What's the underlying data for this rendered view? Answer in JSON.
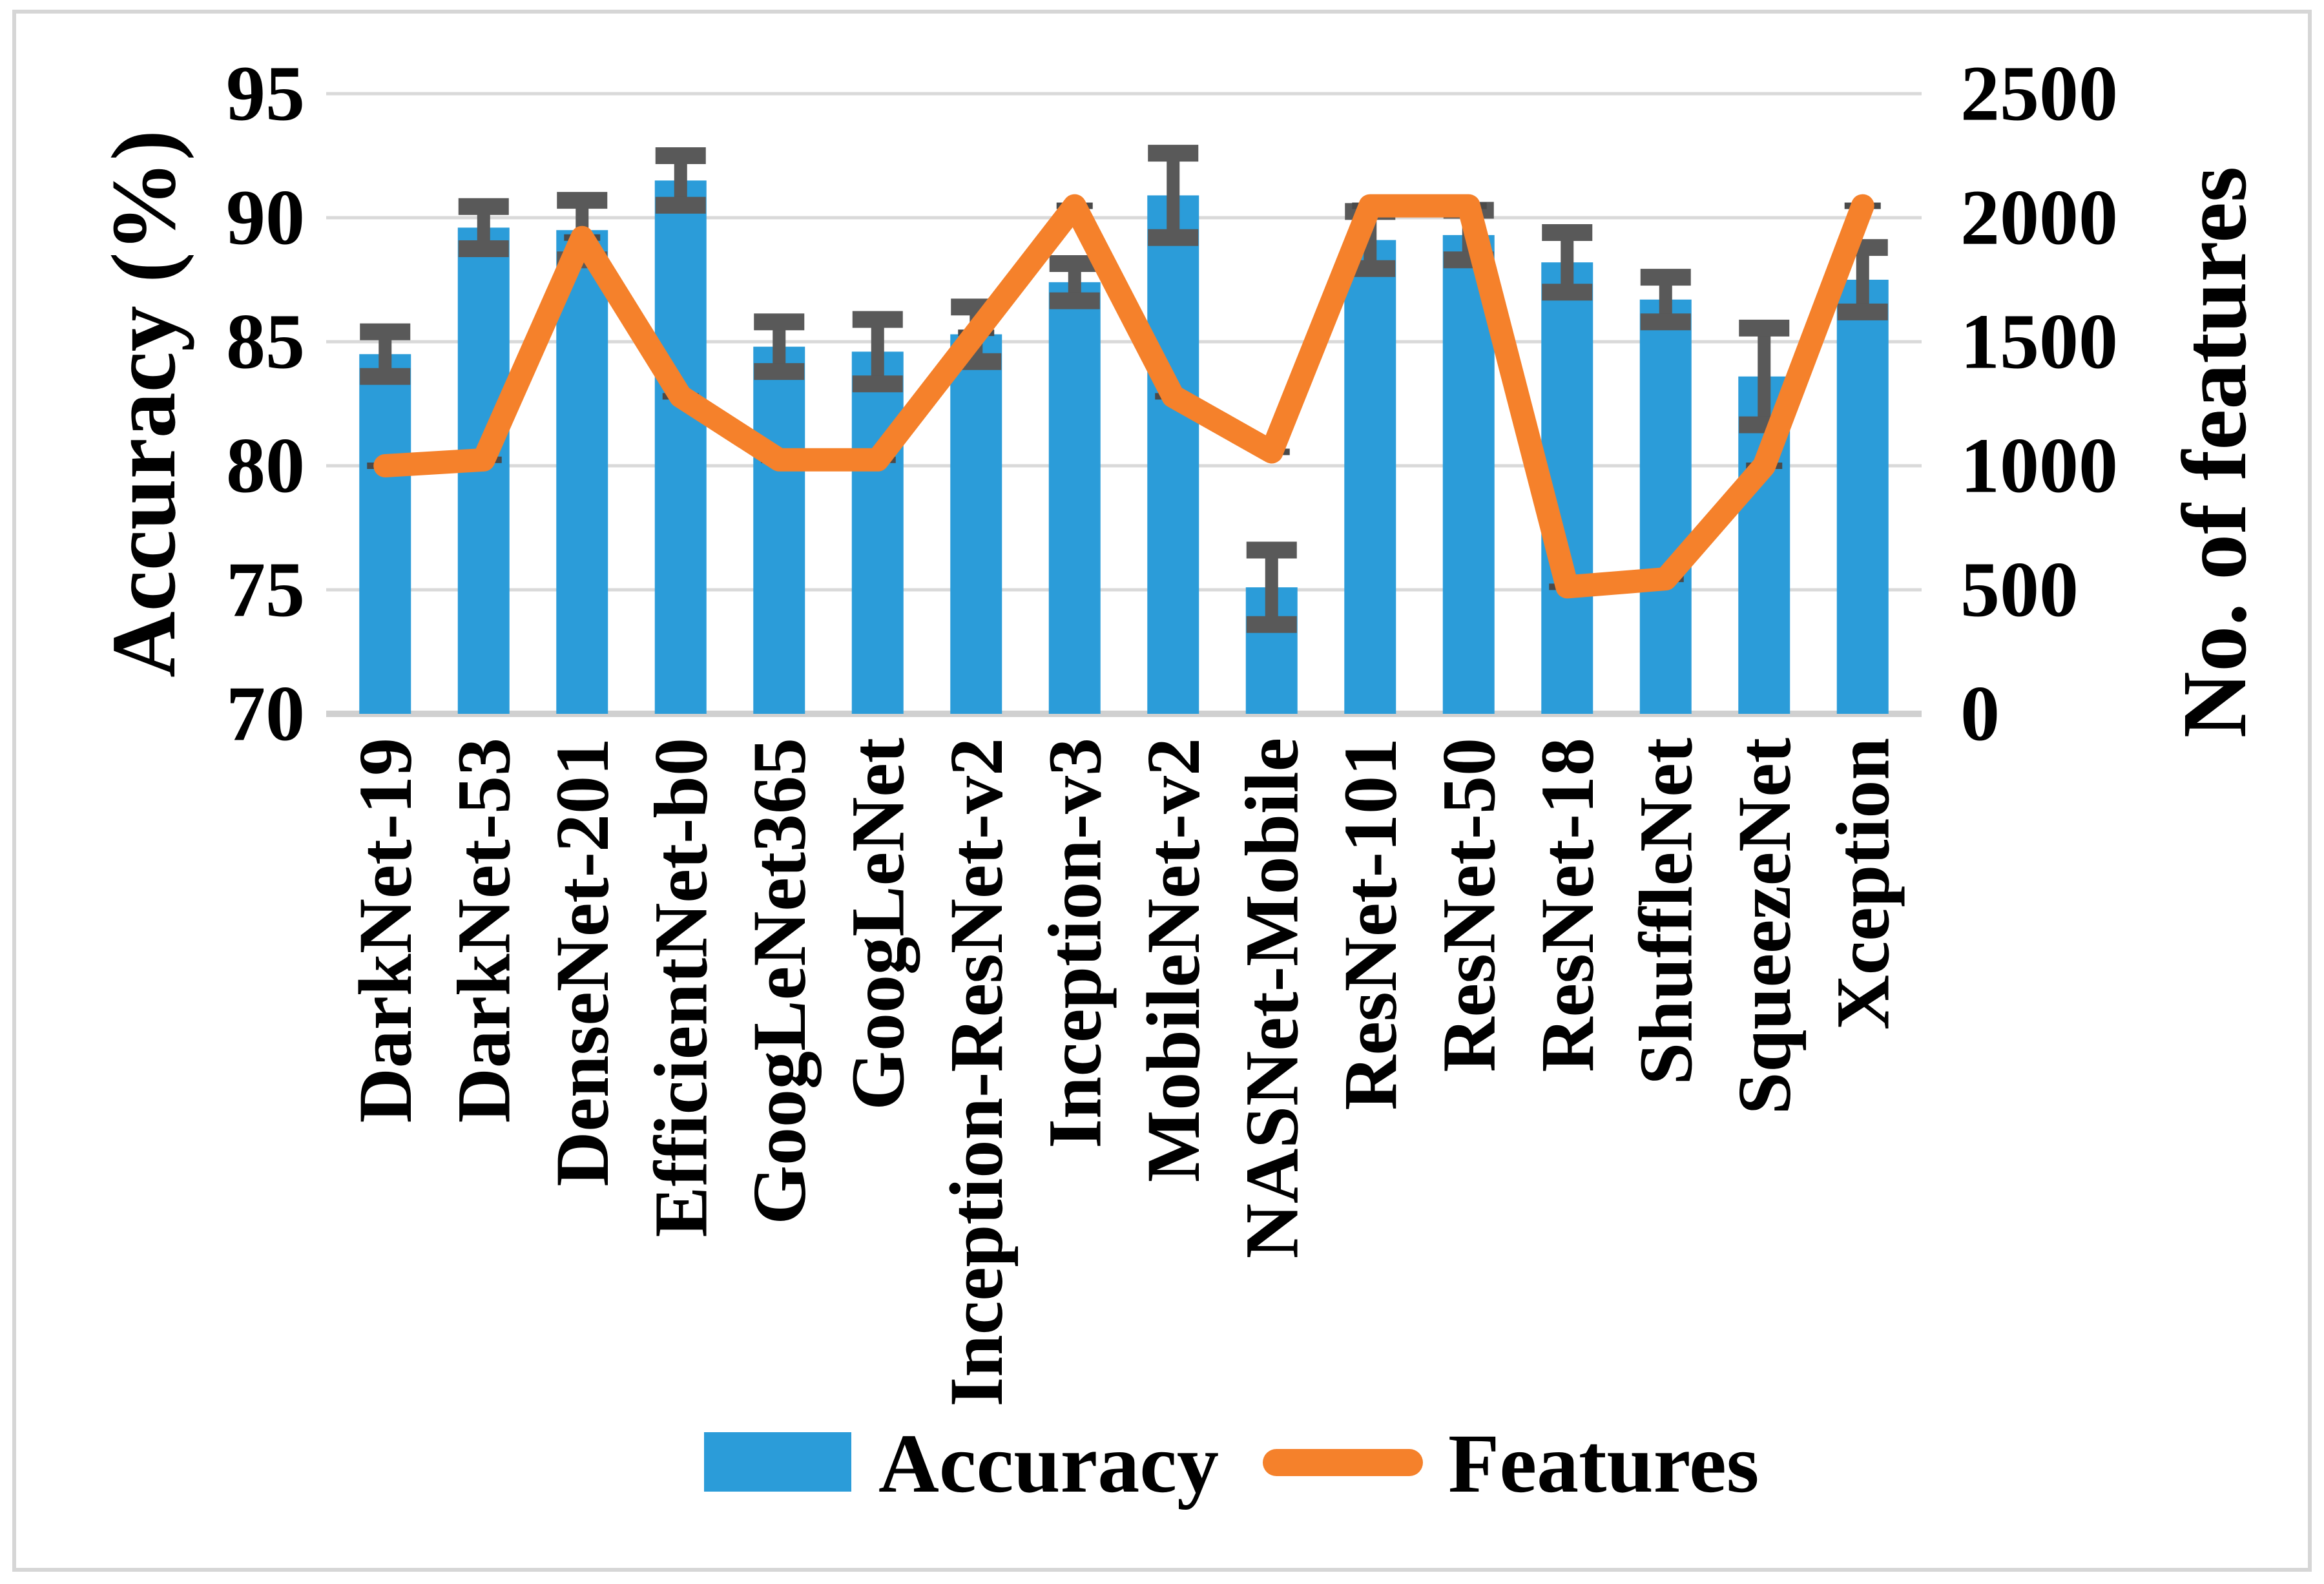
{
  "chart_data": {
    "type": "bar+line combo",
    "categories": [
      "DarkNet-19",
      "DarkNet-53",
      "DenseNet-201",
      "EfficientNet-b0",
      "GoogLeNet365",
      "GoogLeNet",
      "Inception-ResNet-v2",
      "Inception-v3",
      "MobileNet-v2",
      "NASNet-Mobile",
      "ResNet-101",
      "ResNet-50",
      "ResNet-18",
      "ShuffleNet",
      "SqueezeNet",
      "Xception"
    ],
    "series": [
      {
        "name": "Accuracy",
        "type": "bar",
        "axis": "left",
        "color": "#2b9cd9",
        "values": [
          84.5,
          89.6,
          89.5,
          91.5,
          84.8,
          84.6,
          85.3,
          87.4,
          90.9,
          75.1,
          89.1,
          89.3,
          88.2,
          86.7,
          83.6,
          87.5
        ],
        "error": [
          0.9,
          0.85,
          1.2,
          1.0,
          1.0,
          1.3,
          1.1,
          0.75,
          1.7,
          1.5,
          1.15,
          1.0,
          1.2,
          0.9,
          1.95,
          1.3
        ]
      },
      {
        "name": "Features",
        "type": "line",
        "axis": "right",
        "color": "#f5812b",
        "values": [
          1000,
          1024,
          1920,
          1280,
          1024,
          1024,
          1536,
          2048,
          1280,
          1056,
          2048,
          2048,
          512,
          544,
          1000,
          2048
        ]
      }
    ],
    "left_axis": {
      "label": "Accuracy (%)",
      "min": 70,
      "max": 95,
      "step": 5,
      "ticks": [
        95,
        90,
        85,
        80,
        75,
        70
      ]
    },
    "right_axis": {
      "label": "No. of features",
      "min": 0,
      "max": 2500,
      "step": 500,
      "ticks": [
        2500,
        2000,
        1500,
        1000,
        500,
        0
      ]
    },
    "grid": true,
    "legend_position": "bottom"
  },
  "styles": {
    "bar_color": "#2b9cd9",
    "line_color": "#f5812b",
    "error_bar_color": "#595959",
    "point_dash_color": "#4a4a4a",
    "gridline_color": "#d9d9d9",
    "baseline_color": "#d0d0d0",
    "frame_color": "#d6d6d6",
    "text_color": "#000000"
  }
}
